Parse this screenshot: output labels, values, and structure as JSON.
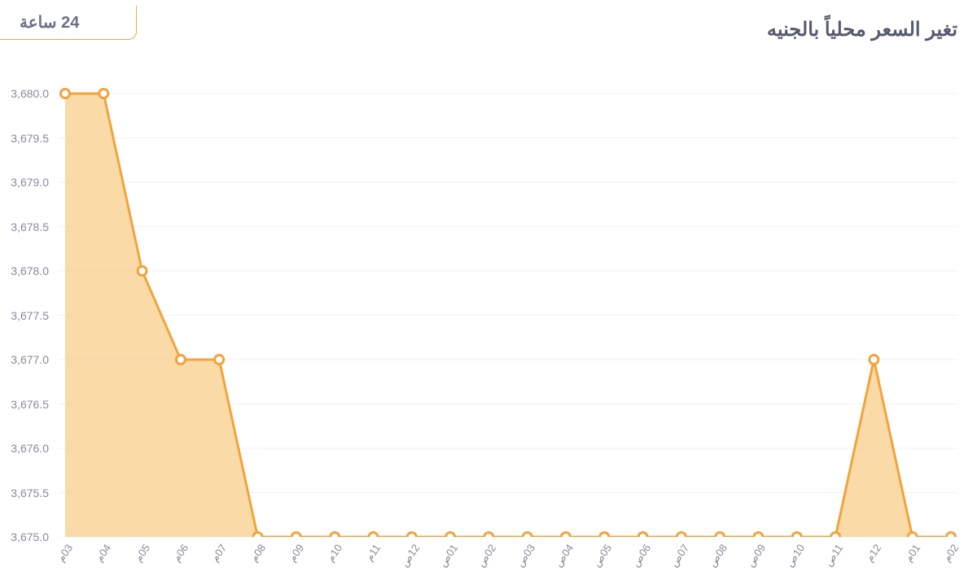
{
  "title": "تغير السعر محلياً بالجنيه",
  "range_tab": "24 ساعة",
  "chart": {
    "type": "area",
    "line_color": "#f2a33c",
    "fill_color": "#f8cd8a",
    "fill_opacity": 0.75,
    "background_color": "#ffffff",
    "grid_color": "#f0f1f3",
    "line_width": 3,
    "marker_radius": 5.5,
    "marker_fill": "#ffffff",
    "marker_stroke": "#f2a33c",
    "marker_stroke_width": 3,
    "axis_label_color": "#888b99",
    "axis_label_fontsize": 14,
    "ylim": [
      3675.0,
      3680.0
    ],
    "ytick_step": 0.5,
    "y_ticks": [
      "3,675.0",
      "3,675.5",
      "3,676.0",
      "3,676.5",
      "3,677.0",
      "3,677.5",
      "3,678.0",
      "3,678.5",
      "3,679.0",
      "3,679.5",
      "3,680.0"
    ],
    "x_labels": [
      "03م",
      "04م",
      "05م",
      "06م",
      "07م",
      "08م",
      "09م",
      "10م",
      "11م",
      "12ص",
      "01ص",
      "02ص",
      "03ص",
      "04ص",
      "05ص",
      "06ص",
      "07ص",
      "08ص",
      "09ص",
      "10ص",
      "11ص",
      "12م",
      "01م",
      "02م"
    ],
    "values": [
      3680.0,
      3680.0,
      3678.0,
      3677.0,
      3677.0,
      3675.0,
      3675.0,
      3675.0,
      3675.0,
      3675.0,
      3675.0,
      3675.0,
      3675.0,
      3675.0,
      3675.0,
      3675.0,
      3675.0,
      3675.0,
      3675.0,
      3675.0,
      3675.0,
      3677.0,
      3675.0,
      3675.0
    ]
  }
}
